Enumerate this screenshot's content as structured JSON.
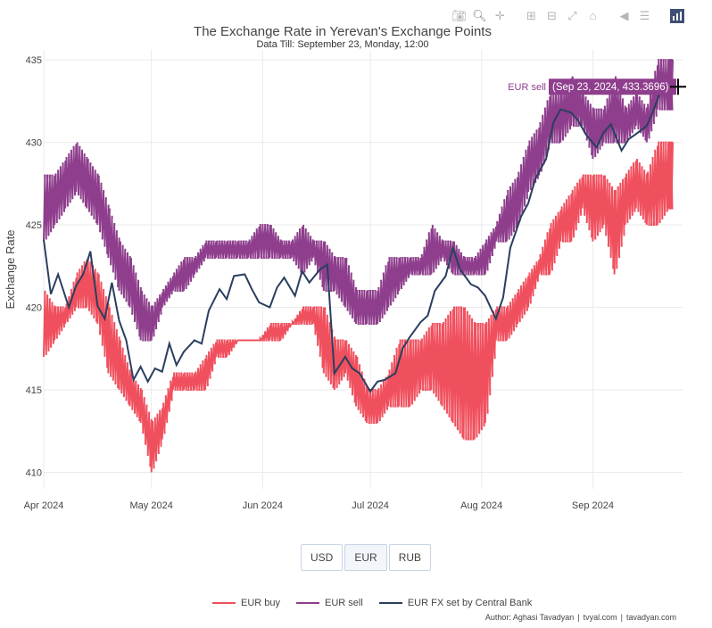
{
  "toolbar": {
    "icons": [
      "camera-icon",
      "zoom-icon",
      "pan-icon",
      "zoom-in-icon",
      "zoom-out-icon",
      "autoscale-icon",
      "reset-axes-icon",
      "spike-lines-icon",
      "compare-hover-icon",
      "plotly-logo-icon"
    ]
  },
  "header": {
    "title": "The Exchange Rate in Yerevan's Exchange Points",
    "subtitle": "Data Till: September 23, Monday, 12:00"
  },
  "currency_buttons": [
    {
      "label": "USD",
      "selected": false
    },
    {
      "label": "EUR",
      "selected": true
    },
    {
      "label": "RUB",
      "selected": false
    }
  ],
  "tooltip": {
    "series": "EUR sell",
    "text": "(Sep 23, 2024, 433.3696)",
    "color": "#8e3e8c"
  },
  "credits": {
    "author": "Author: Aghasi Tavadyan",
    "site1": "tvyal.com",
    "site2": "tavadyan.com"
  },
  "chart_data": {
    "type": "line",
    "title": "The Exchange Rate in Yerevan's Exchange Points",
    "subtitle": "Data Till: September 23, Monday, 12:00",
    "xlabel": "",
    "ylabel": "Exchange Rate",
    "ylim": [
      409,
      435.6
    ],
    "xlim": [
      "2024-04-01",
      "2024-09-26"
    ],
    "yticks": [
      410,
      415,
      420,
      425,
      430,
      435
    ],
    "xticks": [
      {
        "date": "2024-04-01",
        "label": "Apr 2024"
      },
      {
        "date": "2024-05-01",
        "label": "May 2024"
      },
      {
        "date": "2024-06-01",
        "label": "Jun 2024"
      },
      {
        "date": "2024-07-01",
        "label": "Jul 2024"
      },
      {
        "date": "2024-08-01",
        "label": "Aug 2024"
      },
      {
        "date": "2024-09-01",
        "label": "Sep 2024"
      }
    ],
    "grid": true,
    "legend_position": "bottom-center",
    "series": [
      {
        "name": "EUR buy",
        "color": "#f0505e",
        "style": "band",
        "points": [
          [
            "2024-04-01",
            417,
            421
          ],
          [
            "2024-04-04",
            418,
            420
          ],
          [
            "2024-04-07",
            419,
            420
          ],
          [
            "2024-04-10",
            420,
            422
          ],
          [
            "2024-04-13",
            420,
            423
          ],
          [
            "2024-04-16",
            419,
            422
          ],
          [
            "2024-04-19",
            416,
            420
          ],
          [
            "2024-04-22",
            415,
            418
          ],
          [
            "2024-04-25",
            414,
            416
          ],
          [
            "2024-04-28",
            413,
            415
          ],
          [
            "2024-05-01",
            410,
            413
          ],
          [
            "2024-05-04",
            412,
            414
          ],
          [
            "2024-05-07",
            415,
            416
          ],
          [
            "2024-05-10",
            415,
            416
          ],
          [
            "2024-05-13",
            415,
            416
          ],
          [
            "2024-05-16",
            415,
            417
          ],
          [
            "2024-05-19",
            417,
            418
          ],
          [
            "2024-05-22",
            417,
            418
          ],
          [
            "2024-05-25",
            418,
            418
          ],
          [
            "2024-05-28",
            418,
            418
          ],
          [
            "2024-05-31",
            418,
            418
          ],
          [
            "2024-06-03",
            418,
            419
          ],
          [
            "2024-06-06",
            418,
            419
          ],
          [
            "2024-06-09",
            419,
            419
          ],
          [
            "2024-06-12",
            419,
            420
          ],
          [
            "2024-06-15",
            419,
            420
          ],
          [
            "2024-06-18",
            416,
            420
          ],
          [
            "2024-06-21",
            415,
            418
          ],
          [
            "2024-06-24",
            416,
            418
          ],
          [
            "2024-06-27",
            414,
            417
          ],
          [
            "2024-06-30",
            413,
            415
          ],
          [
            "2024-07-03",
            413,
            415
          ],
          [
            "2024-07-06",
            414,
            416
          ],
          [
            "2024-07-09",
            414,
            418
          ],
          [
            "2024-07-12",
            414,
            418
          ],
          [
            "2024-07-15",
            415,
            418
          ],
          [
            "2024-07-18",
            415,
            419
          ],
          [
            "2024-07-21",
            414,
            419
          ],
          [
            "2024-07-24",
            413,
            420
          ],
          [
            "2024-07-27",
            412,
            420
          ],
          [
            "2024-07-30",
            412,
            419
          ],
          [
            "2024-08-02",
            413,
            419
          ],
          [
            "2024-08-05",
            418,
            420
          ],
          [
            "2024-08-08",
            418,
            420
          ],
          [
            "2024-08-11",
            419,
            421
          ],
          [
            "2024-08-14",
            420,
            422
          ],
          [
            "2024-08-17",
            422,
            423
          ],
          [
            "2024-08-20",
            422,
            425
          ],
          [
            "2024-08-23",
            424,
            426
          ],
          [
            "2024-08-26",
            424,
            427
          ],
          [
            "2024-08-29",
            426,
            428
          ],
          [
            "2024-09-01",
            424,
            428
          ],
          [
            "2024-09-04",
            425,
            428
          ],
          [
            "2024-09-07",
            422,
            427
          ],
          [
            "2024-09-10",
            425,
            428
          ],
          [
            "2024-09-13",
            426,
            429
          ],
          [
            "2024-09-16",
            425,
            428
          ],
          [
            "2024-09-19",
            425,
            430
          ],
          [
            "2024-09-22",
            426,
            430
          ],
          [
            "2024-09-23",
            426,
            430
          ]
        ]
      },
      {
        "name": "EUR sell",
        "color": "#8e3e8c",
        "style": "band",
        "points": [
          [
            "2024-04-01",
            424,
            428
          ],
          [
            "2024-04-04",
            425,
            428
          ],
          [
            "2024-04-07",
            426,
            429
          ],
          [
            "2024-04-10",
            427,
            430
          ],
          [
            "2024-04-13",
            426,
            429
          ],
          [
            "2024-04-16",
            425,
            428
          ],
          [
            "2024-04-19",
            423,
            426
          ],
          [
            "2024-04-22",
            421,
            424
          ],
          [
            "2024-04-25",
            420,
            423
          ],
          [
            "2024-04-28",
            418,
            421
          ],
          [
            "2024-05-01",
            418,
            420
          ],
          [
            "2024-05-04",
            420,
            421
          ],
          [
            "2024-05-07",
            421,
            422
          ],
          [
            "2024-05-10",
            421,
            423
          ],
          [
            "2024-05-13",
            422,
            423
          ],
          [
            "2024-05-16",
            423,
            424
          ],
          [
            "2024-05-19",
            423,
            424
          ],
          [
            "2024-05-22",
            423,
            424
          ],
          [
            "2024-05-25",
            423,
            424
          ],
          [
            "2024-05-28",
            423,
            424
          ],
          [
            "2024-05-31",
            423,
            425
          ],
          [
            "2024-06-03",
            423,
            425
          ],
          [
            "2024-06-06",
            423,
            424
          ],
          [
            "2024-06-09",
            423,
            424
          ],
          [
            "2024-06-12",
            422,
            425
          ],
          [
            "2024-06-15",
            423,
            424
          ],
          [
            "2024-06-18",
            421,
            424
          ],
          [
            "2024-06-21",
            421,
            423
          ],
          [
            "2024-06-24",
            420,
            423
          ],
          [
            "2024-06-27",
            419,
            421
          ],
          [
            "2024-06-30",
            419,
            421
          ],
          [
            "2024-07-03",
            419,
            421
          ],
          [
            "2024-07-06",
            420,
            423
          ],
          [
            "2024-07-09",
            421,
            423
          ],
          [
            "2024-07-12",
            422,
            423
          ],
          [
            "2024-07-15",
            422,
            423
          ],
          [
            "2024-07-18",
            422,
            425
          ],
          [
            "2024-07-21",
            423,
            424
          ],
          [
            "2024-07-24",
            422,
            424
          ],
          [
            "2024-07-27",
            422,
            423
          ],
          [
            "2024-07-30",
            422,
            423
          ],
          [
            "2024-08-02",
            422,
            424
          ],
          [
            "2024-08-05",
            424,
            425
          ],
          [
            "2024-08-08",
            424,
            427
          ],
          [
            "2024-08-11",
            425,
            428
          ],
          [
            "2024-08-14",
            427,
            430
          ],
          [
            "2024-08-17",
            428,
            431
          ],
          [
            "2024-08-20",
            430,
            433
          ],
          [
            "2024-08-23",
            430,
            433
          ],
          [
            "2024-08-26",
            431,
            434
          ],
          [
            "2024-08-29",
            431,
            433
          ],
          [
            "2024-09-01",
            429,
            432
          ],
          [
            "2024-09-04",
            430,
            432
          ],
          [
            "2024-09-07",
            430,
            434
          ],
          [
            "2024-09-10",
            430,
            432
          ],
          [
            "2024-09-13",
            431,
            433
          ],
          [
            "2024-09-16",
            430,
            432
          ],
          [
            "2024-09-19",
            432,
            435
          ],
          [
            "2024-09-22",
            432,
            435
          ],
          [
            "2024-09-23",
            432,
            435
          ]
        ]
      },
      {
        "name": "EUR FX set by Central Bank",
        "color": "#2a3f5f",
        "style": "line",
        "points": [
          [
            "2024-04-01",
            424.1
          ],
          [
            "2024-04-03",
            420.8
          ],
          [
            "2024-04-05",
            422.0
          ],
          [
            "2024-04-08",
            420.0
          ],
          [
            "2024-04-10",
            421.3
          ],
          [
            "2024-04-12",
            422.0
          ],
          [
            "2024-04-14",
            423.4
          ],
          [
            "2024-04-16",
            420.1
          ],
          [
            "2024-04-18",
            419.3
          ],
          [
            "2024-04-20",
            421.5
          ],
          [
            "2024-04-22",
            419.2
          ],
          [
            "2024-04-24",
            418.0
          ],
          [
            "2024-04-26",
            415.6
          ],
          [
            "2024-04-28",
            416.4
          ],
          [
            "2024-04-30",
            415.5
          ],
          [
            "2024-05-02",
            416.3
          ],
          [
            "2024-05-04",
            416.1
          ],
          [
            "2024-05-06",
            417.8
          ],
          [
            "2024-05-08",
            416.5
          ],
          [
            "2024-05-10",
            417.3
          ],
          [
            "2024-05-13",
            418.0
          ],
          [
            "2024-05-15",
            417.8
          ],
          [
            "2024-05-17",
            419.8
          ],
          [
            "2024-05-20",
            421.1
          ],
          [
            "2024-05-22",
            420.5
          ],
          [
            "2024-05-24",
            421.9
          ],
          [
            "2024-05-27",
            422.0
          ],
          [
            "2024-05-29",
            421.1
          ],
          [
            "2024-05-31",
            420.3
          ],
          [
            "2024-06-03",
            420.0
          ],
          [
            "2024-06-05",
            421.2
          ],
          [
            "2024-06-07",
            421.8
          ],
          [
            "2024-06-10",
            420.7
          ],
          [
            "2024-06-12",
            422.2
          ],
          [
            "2024-06-14",
            421.5
          ],
          [
            "2024-06-17",
            422.3
          ],
          [
            "2024-06-19",
            422.6
          ],
          [
            "2024-06-21",
            416.0
          ],
          [
            "2024-06-24",
            417.0
          ],
          [
            "2024-06-26",
            416.3
          ],
          [
            "2024-06-28",
            416.0
          ],
          [
            "2024-07-01",
            414.9
          ],
          [
            "2024-07-03",
            415.5
          ],
          [
            "2024-07-05",
            415.6
          ],
          [
            "2024-07-08",
            416.0
          ],
          [
            "2024-07-10",
            417.5
          ],
          [
            "2024-07-12",
            418.2
          ],
          [
            "2024-07-15",
            419.1
          ],
          [
            "2024-07-17",
            419.5
          ],
          [
            "2024-07-19",
            421.0
          ],
          [
            "2024-07-22",
            421.9
          ],
          [
            "2024-07-24",
            423.6
          ],
          [
            "2024-07-26",
            422.3
          ],
          [
            "2024-07-29",
            421.4
          ],
          [
            "2024-07-31",
            421.2
          ],
          [
            "2024-08-02",
            420.7
          ],
          [
            "2024-08-05",
            419.3
          ],
          [
            "2024-08-07",
            420.6
          ],
          [
            "2024-08-09",
            423.6
          ],
          [
            "2024-08-12",
            425.5
          ],
          [
            "2024-08-14",
            426.3
          ],
          [
            "2024-08-16",
            427.8
          ],
          [
            "2024-08-19",
            429.0
          ],
          [
            "2024-08-21",
            431.2
          ],
          [
            "2024-08-23",
            432.0
          ],
          [
            "2024-08-26",
            431.8
          ],
          [
            "2024-08-28",
            431.3
          ],
          [
            "2024-08-30",
            430.5
          ],
          [
            "2024-09-02",
            429.7
          ],
          [
            "2024-09-04",
            430.6
          ],
          [
            "2024-09-06",
            431.1
          ],
          [
            "2024-09-09",
            429.5
          ],
          [
            "2024-09-11",
            430.2
          ],
          [
            "2024-09-13",
            430.5
          ],
          [
            "2024-09-16",
            431.0
          ],
          [
            "2024-09-18",
            432.0
          ],
          [
            "2024-09-20",
            433.2
          ],
          [
            "2024-09-23",
            432.9
          ]
        ]
      }
    ]
  }
}
